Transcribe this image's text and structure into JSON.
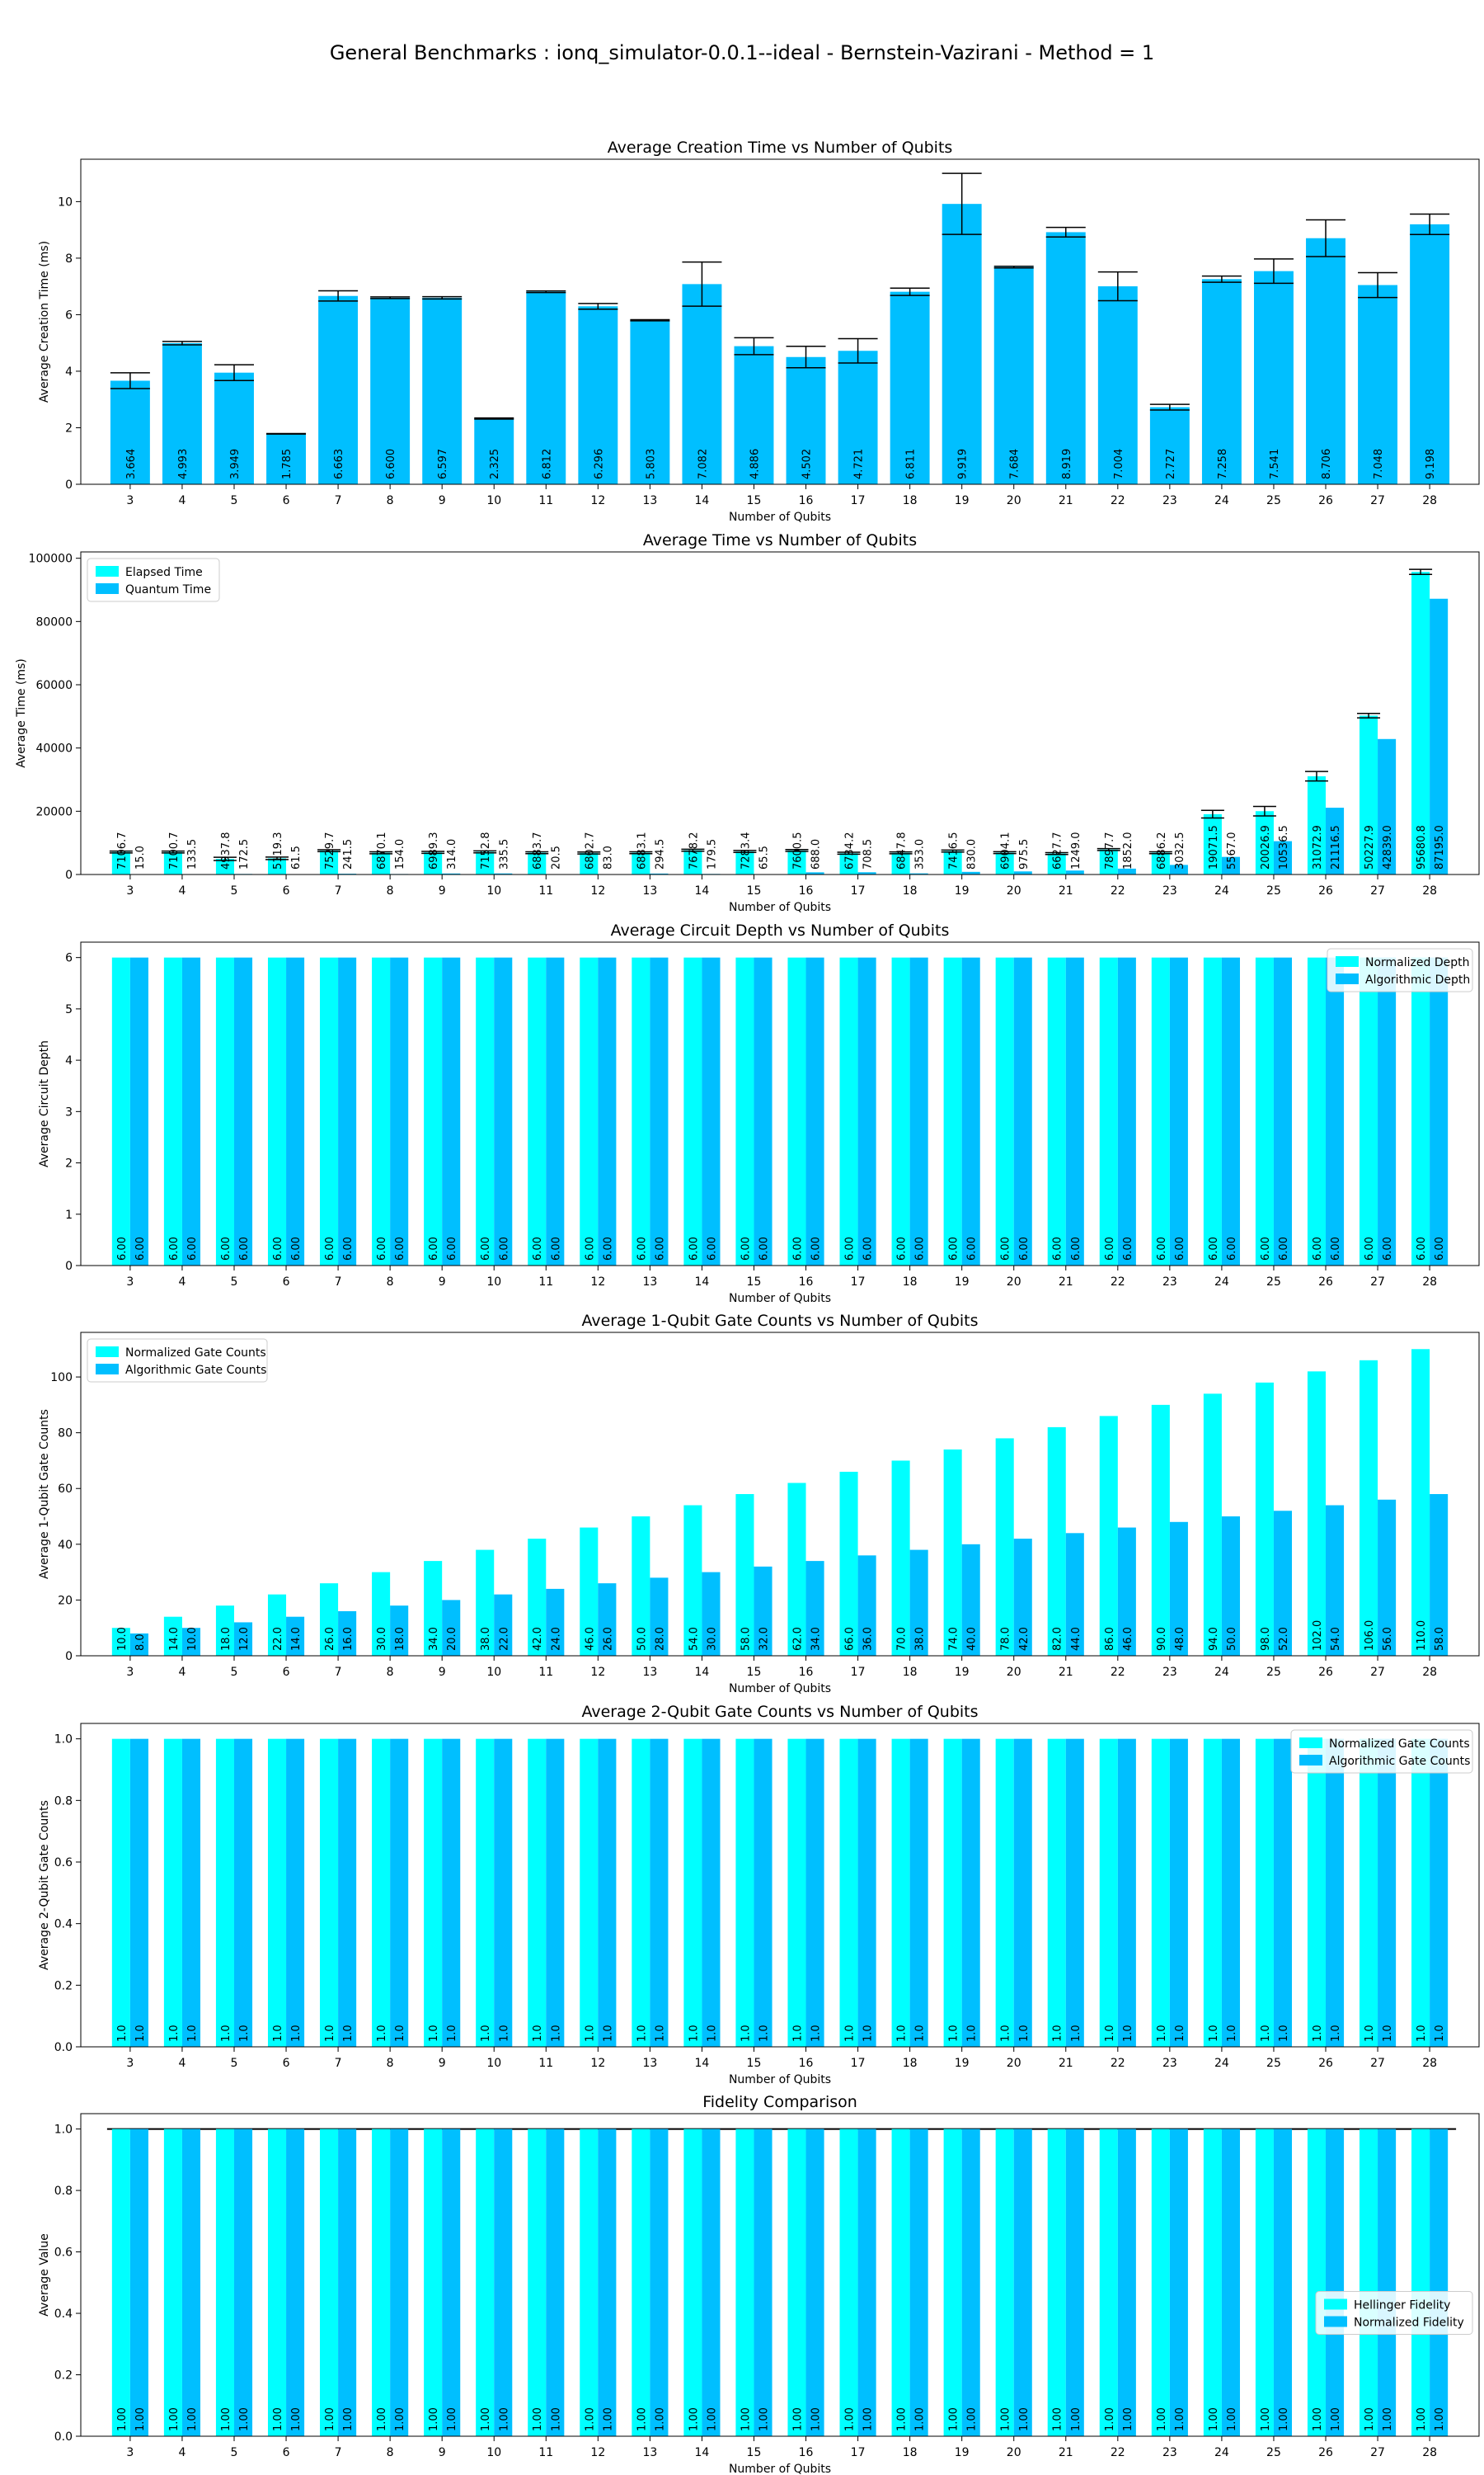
{
  "suptitle": "General Benchmarks : ionq_simulator-0.0.1--ideal - Bernstein-Vazirani - Method = 1",
  "colors": {
    "cyan": "#00ffff",
    "deep_sky_blue": "#00bfff",
    "error_bar": "#000000"
  },
  "chart_data": [
    {
      "type": "bar",
      "title": "Average Creation Time vs Number of Qubits",
      "xlabel": "Number of Qubits",
      "ylabel": "Average Creation Time (ms)",
      "ylim": [
        0,
        11.5
      ],
      "yticks": [
        0,
        2,
        4,
        6,
        8,
        10
      ],
      "categories": [
        "3",
        "4",
        "5",
        "6",
        "7",
        "8",
        "9",
        "10",
        "11",
        "12",
        "13",
        "14",
        "15",
        "16",
        "17",
        "18",
        "19",
        "20",
        "21",
        "22",
        "23",
        "24",
        "25",
        "26",
        "27",
        "28"
      ],
      "series": [
        {
          "color": "#00bfff",
          "values": [
            3.664,
            4.993,
            3.949,
            1.785,
            6.663,
            6.6,
            6.597,
            2.325,
            6.812,
            6.296,
            5.803,
            7.082,
            4.886,
            4.502,
            4.721,
            6.811,
            9.919,
            7.684,
            8.919,
            7.004,
            2.727,
            7.258,
            7.541,
            8.706,
            7.048,
            9.198
          ],
          "labels": [
            "3.664",
            "4.993",
            "3.949",
            "1.785",
            "6.663",
            "6.600",
            "6.597",
            "2.325",
            "6.812",
            "6.296",
            "5.803",
            "7.082",
            "4.886",
            "4.502",
            "4.721",
            "6.811",
            "9.919",
            "7.684",
            "8.919",
            "7.004",
            "2.727",
            "7.258",
            "7.541",
            "8.706",
            "7.048",
            "9.198"
          ],
          "errors": [
            0.28,
            0.06,
            0.28,
            0.01,
            0.18,
            0.03,
            0.04,
            0.02,
            0.03,
            0.1,
            0.02,
            0.78,
            0.3,
            0.38,
            0.43,
            0.13,
            1.08,
            0.03,
            0.17,
            0.51,
            0.1,
            0.11,
            0.43,
            0.65,
            0.44,
            0.36
          ]
        }
      ]
    },
    {
      "type": "bar",
      "title": "Average Time vs Number of Qubits",
      "xlabel": "Number of Qubits",
      "ylabel": "Average Time (ms)",
      "ylim": [
        0,
        102000
      ],
      "yticks": [
        0,
        20000,
        40000,
        60000,
        80000,
        100000
      ],
      "legend": "upper-left",
      "categories": [
        "3",
        "4",
        "5",
        "6",
        "7",
        "8",
        "9",
        "10",
        "11",
        "12",
        "13",
        "14",
        "15",
        "16",
        "17",
        "18",
        "19",
        "20",
        "21",
        "22",
        "23",
        "24",
        "25",
        "26",
        "27",
        "28"
      ],
      "series": [
        {
          "name": "Elapsed Time",
          "color": "#00ffff",
          "values": [
            7106.7,
            7100.7,
            4937.8,
            5119.3,
            7529.7,
            6870.1,
            6989.3,
            7152.8,
            6883.7,
            6802.7,
            6883.1,
            7678.2,
            7283.4,
            7600.5,
            6734.2,
            6847.8,
            7416.5,
            6904.1,
            6627.7,
            7897.7,
            6886.2,
            19071.5,
            20026.9,
            31072.9,
            50227.9,
            95680.8
          ],
          "labels": [
            "7106.7",
            "7100.7",
            "4937.8",
            "5119.3",
            "7529.7",
            "6870.1",
            "6989.3",
            "7152.8",
            "6883.7",
            "6802.7",
            "6883.1",
            "7678.2",
            "7283.4",
            "7600.5",
            "6734.2",
            "6847.8",
            "7416.5",
            "6904.1",
            "6627.7",
            "7897.7",
            "6886.2",
            "19071.5",
            "20026.9",
            "31072.9",
            "50227.9",
            "95680.8"
          ],
          "errors": [
            300,
            300,
            500,
            400,
            300,
            300,
            300,
            300,
            300,
            300,
            300,
            300,
            300,
            300,
            300,
            300,
            300,
            300,
            300,
            300,
            300,
            1200,
            1500,
            1500,
            700,
            800
          ]
        },
        {
          "name": "Quantum Time",
          "color": "#00bfff",
          "values": [
            15.0,
            133.5,
            172.5,
            61.5,
            241.5,
            154.0,
            314.0,
            335.5,
            20.5,
            83.0,
            294.5,
            179.5,
            65.5,
            688.0,
            708.5,
            353.0,
            830.0,
            975.5,
            1249.0,
            1852.0,
            3032.5,
            5567.0,
            10536.5,
            21116.5,
            42839.0,
            87195.0
          ],
          "labels": [
            "15.0",
            "133.5",
            "172.5",
            "61.5",
            "241.5",
            "154.0",
            "314.0",
            "335.5",
            "20.5",
            "83.0",
            "294.5",
            "179.5",
            "65.5",
            "688.0",
            "708.5",
            "353.0",
            "830.0",
            "975.5",
            "1249.0",
            "1852.0",
            "3032.5",
            "5567.0",
            "10536.5",
            "21116.5",
            "42839.0",
            "87195.0"
          ]
        }
      ]
    },
    {
      "type": "bar",
      "title": "Average Circuit Depth vs Number of Qubits",
      "xlabel": "Number of Qubits",
      "ylabel": "Average Circuit Depth",
      "ylim": [
        0,
        6.3
      ],
      "yticks": [
        0,
        1,
        2,
        3,
        4,
        5,
        6
      ],
      "legend": "upper-right",
      "categories": [
        "3",
        "4",
        "5",
        "6",
        "7",
        "8",
        "9",
        "10",
        "11",
        "12",
        "13",
        "14",
        "15",
        "16",
        "17",
        "18",
        "19",
        "20",
        "21",
        "22",
        "23",
        "24",
        "25",
        "26",
        "27",
        "28"
      ],
      "series": [
        {
          "name": "Normalized Depth",
          "color": "#00ffff",
          "values": [
            6,
            6,
            6,
            6,
            6,
            6,
            6,
            6,
            6,
            6,
            6,
            6,
            6,
            6,
            6,
            6,
            6,
            6,
            6,
            6,
            6,
            6,
            6,
            6,
            6,
            6
          ],
          "labels": [
            "6.00",
            "6.00",
            "6.00",
            "6.00",
            "6.00",
            "6.00",
            "6.00",
            "6.00",
            "6.00",
            "6.00",
            "6.00",
            "6.00",
            "6.00",
            "6.00",
            "6.00",
            "6.00",
            "6.00",
            "6.00",
            "6.00",
            "6.00",
            "6.00",
            "6.00",
            "6.00",
            "6.00",
            "6.00",
            "6.00"
          ]
        },
        {
          "name": "Algorithmic Depth",
          "color": "#00bfff",
          "values": [
            6,
            6,
            6,
            6,
            6,
            6,
            6,
            6,
            6,
            6,
            6,
            6,
            6,
            6,
            6,
            6,
            6,
            6,
            6,
            6,
            6,
            6,
            6,
            6,
            6,
            6
          ],
          "labels": [
            "6.00",
            "6.00",
            "6.00",
            "6.00",
            "6.00",
            "6.00",
            "6.00",
            "6.00",
            "6.00",
            "6.00",
            "6.00",
            "6.00",
            "6.00",
            "6.00",
            "6.00",
            "6.00",
            "6.00",
            "6.00",
            "6.00",
            "6.00",
            "6.00",
            "6.00",
            "6.00",
            "6.00",
            "6.00",
            "6.00"
          ]
        }
      ]
    },
    {
      "type": "bar",
      "title": "Average 1-Qubit Gate Counts vs Number of Qubits",
      "xlabel": "Number of Qubits",
      "ylabel": "Average 1-Qubit Gate Counts",
      "ylim": [
        0,
        116
      ],
      "yticks": [
        0,
        20,
        40,
        60,
        80,
        100
      ],
      "legend": "upper-left",
      "categories": [
        "3",
        "4",
        "5",
        "6",
        "7",
        "8",
        "9",
        "10",
        "11",
        "12",
        "13",
        "14",
        "15",
        "16",
        "17",
        "18",
        "19",
        "20",
        "21",
        "22",
        "23",
        "24",
        "25",
        "26",
        "27",
        "28"
      ],
      "series": [
        {
          "name": "Normalized Gate Counts",
          "color": "#00ffff",
          "values": [
            10,
            14,
            18,
            22,
            26,
            30,
            34,
            38,
            42,
            46,
            50,
            54,
            58,
            62,
            66,
            70,
            74,
            78,
            82,
            86,
            90,
            94,
            98,
            102,
            106,
            110
          ],
          "labels": [
            "10.0",
            "14.0",
            "18.0",
            "22.0",
            "26.0",
            "30.0",
            "34.0",
            "38.0",
            "42.0",
            "46.0",
            "50.0",
            "54.0",
            "58.0",
            "62.0",
            "66.0",
            "70.0",
            "74.0",
            "78.0",
            "82.0",
            "86.0",
            "90.0",
            "94.0",
            "98.0",
            "102.0",
            "106.0",
            "110.0"
          ]
        },
        {
          "name": "Algorithmic Gate Counts",
          "color": "#00bfff",
          "values": [
            8,
            10,
            12,
            14,
            16,
            18,
            20,
            22,
            24,
            26,
            28,
            30,
            32,
            34,
            36,
            38,
            40,
            42,
            44,
            46,
            48,
            50,
            52,
            54,
            56,
            58
          ],
          "labels": [
            "8.0",
            "10.0",
            "12.0",
            "14.0",
            "16.0",
            "18.0",
            "20.0",
            "22.0",
            "24.0",
            "26.0",
            "28.0",
            "30.0",
            "32.0",
            "34.0",
            "36.0",
            "38.0",
            "40.0",
            "42.0",
            "44.0",
            "46.0",
            "48.0",
            "50.0",
            "52.0",
            "54.0",
            "56.0",
            "58.0"
          ]
        }
      ]
    },
    {
      "type": "bar",
      "title": "Average 2-Qubit Gate Counts vs Number of Qubits",
      "xlabel": "Number of Qubits",
      "ylabel": "Average 2-Qubit Gate Counts",
      "ylim": [
        0,
        1.05
      ],
      "yticks": [
        0.0,
        0.2,
        0.4,
        0.6,
        0.8,
        1.0
      ],
      "legend": "upper-right",
      "categories": [
        "3",
        "4",
        "5",
        "6",
        "7",
        "8",
        "9",
        "10",
        "11",
        "12",
        "13",
        "14",
        "15",
        "16",
        "17",
        "18",
        "19",
        "20",
        "21",
        "22",
        "23",
        "24",
        "25",
        "26",
        "27",
        "28"
      ],
      "series": [
        {
          "name": "Normalized Gate Counts",
          "color": "#00ffff",
          "values": [
            1,
            1,
            1,
            1,
            1,
            1,
            1,
            1,
            1,
            1,
            1,
            1,
            1,
            1,
            1,
            1,
            1,
            1,
            1,
            1,
            1,
            1,
            1,
            1,
            1,
            1
          ],
          "labels": [
            "1.0",
            "1.0",
            "1.0",
            "1.0",
            "1.0",
            "1.0",
            "1.0",
            "1.0",
            "1.0",
            "1.0",
            "1.0",
            "1.0",
            "1.0",
            "1.0",
            "1.0",
            "1.0",
            "1.0",
            "1.0",
            "1.0",
            "1.0",
            "1.0",
            "1.0",
            "1.0",
            "1.0",
            "1.0",
            "1.0"
          ]
        },
        {
          "name": "Algorithmic Gate Counts",
          "color": "#00bfff",
          "values": [
            1,
            1,
            1,
            1,
            1,
            1,
            1,
            1,
            1,
            1,
            1,
            1,
            1,
            1,
            1,
            1,
            1,
            1,
            1,
            1,
            1,
            1,
            1,
            1,
            1,
            1
          ],
          "labels": [
            "1.0",
            "1.0",
            "1.0",
            "1.0",
            "1.0",
            "1.0",
            "1.0",
            "1.0",
            "1.0",
            "1.0",
            "1.0",
            "1.0",
            "1.0",
            "1.0",
            "1.0",
            "1.0",
            "1.0",
            "1.0",
            "1.0",
            "1.0",
            "1.0",
            "1.0",
            "1.0",
            "1.0",
            "1.0",
            "1.0"
          ]
        }
      ]
    },
    {
      "type": "bar",
      "title": "Fidelity Comparison",
      "xlabel": "Number of Qubits",
      "ylabel": "Average Value",
      "ylim": [
        0,
        1.05
      ],
      "yticks": [
        0.0,
        0.2,
        0.4,
        0.6,
        0.8,
        1.0
      ],
      "legend": "center-right",
      "reference_line": 1.0,
      "categories": [
        "3",
        "4",
        "5",
        "6",
        "7",
        "8",
        "9",
        "10",
        "11",
        "12",
        "13",
        "14",
        "15",
        "16",
        "17",
        "18",
        "19",
        "20",
        "21",
        "22",
        "23",
        "24",
        "25",
        "26",
        "27",
        "28"
      ],
      "series": [
        {
          "name": "Hellinger Fidelity",
          "color": "#00ffff",
          "values": [
            1,
            1,
            1,
            1,
            1,
            1,
            1,
            1,
            1,
            1,
            1,
            1,
            1,
            1,
            1,
            1,
            1,
            1,
            1,
            1,
            1,
            1,
            1,
            1,
            1,
            1
          ],
          "labels": [
            "1.00",
            "1.00",
            "1.00",
            "1.00",
            "1.00",
            "1.00",
            "1.00",
            "1.00",
            "1.00",
            "1.00",
            "1.00",
            "1.00",
            "1.00",
            "1.00",
            "1.00",
            "1.00",
            "1.00",
            "1.00",
            "1.00",
            "1.00",
            "1.00",
            "1.00",
            "1.00",
            "1.00",
            "1.00",
            "1.00"
          ]
        },
        {
          "name": "Normalized Fidelity",
          "color": "#00bfff",
          "values": [
            1,
            1,
            1,
            1,
            1,
            1,
            1,
            1,
            1,
            1,
            1,
            1,
            1,
            1,
            1,
            1,
            1,
            1,
            1,
            1,
            1,
            1,
            1,
            1,
            1,
            1
          ],
          "labels": [
            "1.00",
            "1.00",
            "1.00",
            "1.00",
            "1.00",
            "1.00",
            "1.00",
            "1.00",
            "1.00",
            "1.00",
            "1.00",
            "1.00",
            "1.00",
            "1.00",
            "1.00",
            "1.00",
            "1.00",
            "1.00",
            "1.00",
            "1.00",
            "1.00",
            "1.00",
            "1.00",
            "1.00",
            "1.00",
            "1.00"
          ]
        }
      ]
    }
  ]
}
